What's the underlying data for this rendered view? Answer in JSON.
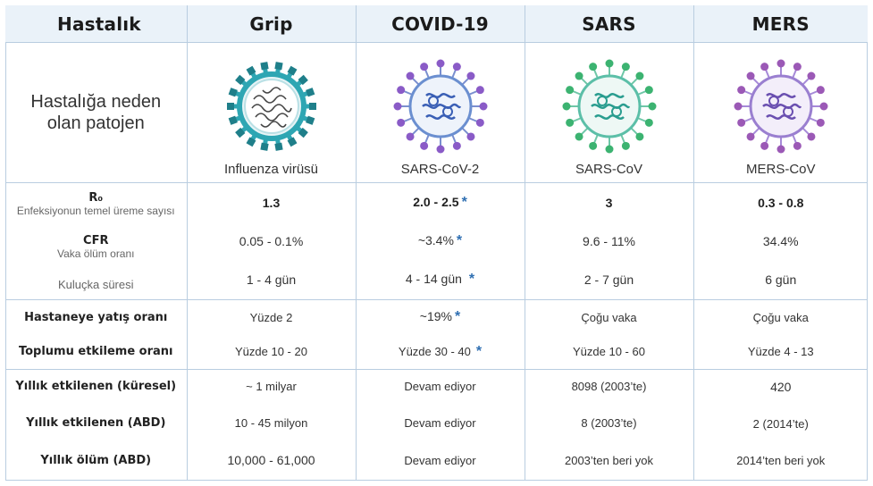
{
  "header": {
    "disease": "Hastalık",
    "cols": [
      "Grip",
      "COVID-19",
      "SARS",
      "MERS"
    ]
  },
  "pathogen": {
    "label_line1": "Hastalığa neden",
    "label_line2": "olan patojen",
    "names": [
      "Influenza virüsü",
      "SARS-CoV-2",
      "SARS-CoV",
      "MERS-CoV"
    ],
    "icons": [
      "influenza-virus-icon",
      "sars-cov-2-virus-icon",
      "sars-cov-virus-icon",
      "mers-cov-virus-icon"
    ],
    "colors": {
      "influenza": "#2ea6b3",
      "covid_spike": "#8a5bc7",
      "covid_rna": "#3a5fb5",
      "sars_spike": "#3cb371",
      "sars_rna": "#2a9d8f",
      "mers_spike": "#9b59b6",
      "mers_rna": "#6a4fb0"
    }
  },
  "group1": {
    "r0": {
      "label": "R₀",
      "sub": "Enfeksiyonun temel üreme sayısı",
      "values": [
        "1.3",
        "2.0 - 2.5",
        "3",
        "0.3 - 0.8"
      ]
    },
    "cfr": {
      "label": "CFR",
      "sub": "Vaka ölüm oranı",
      "values": [
        "0.05 - 0.1%",
        "~3.4%",
        "9.6 - 11%",
        "34.4%"
      ]
    },
    "incubation": {
      "label": "Kuluçka süresi",
      "values": [
        "1 - 4  gün",
        "4 - 14 gün",
        "2 - 7 gün",
        "6  gün"
      ]
    }
  },
  "group2": {
    "hospital": {
      "label": "Hastaneye yatış oranı",
      "values": [
        "Yüzde 2",
        "~19%",
        "Çoğu vaka",
        "Çoğu vaka"
      ]
    },
    "community": {
      "label": "Toplumu etkileme oranı",
      "values": [
        "Yüzde 10 - 20",
        "Yüzde 30 - 40",
        "Yüzde 10 - 60",
        "Yüzde 4 - 13"
      ]
    }
  },
  "group3": {
    "global": {
      "label": "Yıllık etkilenen (küresel)",
      "values": [
        "~  1 milyar",
        "Devam ediyor",
        "8098 (2003’te)",
        "420"
      ]
    },
    "usa": {
      "label": "Yıllık etkilenen (ABD)",
      "values": [
        "10 - 45 milyon",
        "Devam ediyor",
        "8 (2003’te)",
        "2 (2014’te)"
      ]
    },
    "deaths": {
      "label": "Yıllık ölüm (ABD)",
      "values": [
        "10,000 - 61,000",
        "Devam ediyor",
        "2003’ten beri yok",
        "2014’ten beri yok"
      ]
    }
  },
  "star": "*",
  "accent_star_color": "#2f6fb2"
}
